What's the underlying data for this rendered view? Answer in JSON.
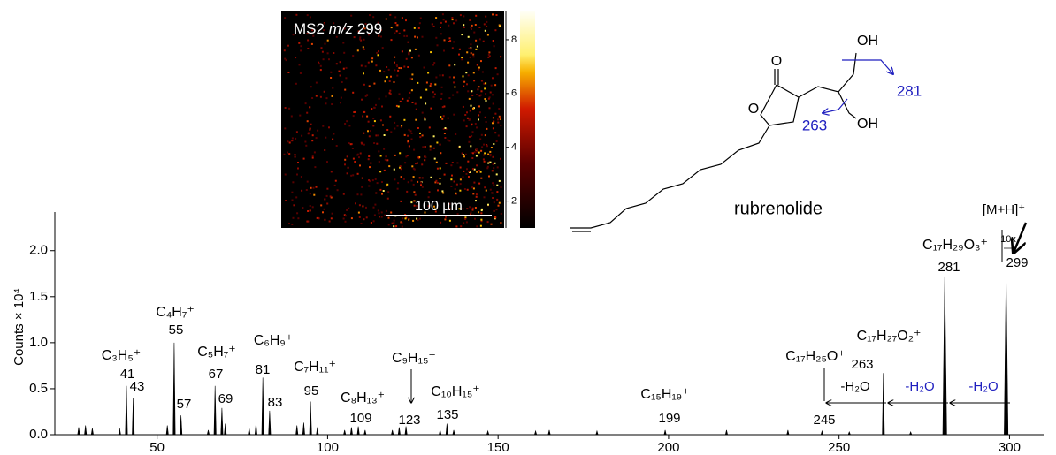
{
  "chart_data": {
    "type": "spectrum",
    "y_label": "Counts × 10⁴",
    "xlim": [
      20,
      310
    ],
    "xticks": [
      50,
      100,
      150,
      200,
      250,
      300
    ],
    "ylim": [
      0,
      2.42
    ],
    "yticks": [
      {
        "value": 0,
        "label": "0.0"
      },
      0.5,
      {
        "value": 1,
        "label": "1.0"
      },
      1.5,
      {
        "value": 2,
        "label": "2.0"
      }
    ],
    "color": "#000000",
    "x": [
      27,
      29,
      31,
      39,
      41,
      43,
      53,
      55,
      57,
      65,
      67,
      69,
      70,
      77,
      79,
      81,
      83,
      91,
      93,
      95,
      97,
      105,
      107,
      109,
      111,
      119,
      121,
      123,
      133,
      135,
      137,
      147,
      161,
      165,
      179,
      199,
      217,
      235,
      245,
      253,
      263,
      271,
      281,
      299
    ],
    "values": [
      0.08,
      0.1,
      0.07,
      0.07,
      0.53,
      0.4,
      0.1,
      1.0,
      0.21,
      0.05,
      0.53,
      0.29,
      0.12,
      0.07,
      0.12,
      0.62,
      0.26,
      0.1,
      0.13,
      0.36,
      0.08,
      0.05,
      0.08,
      0.09,
      0.05,
      0.05,
      0.08,
      0.09,
      0.05,
      0.12,
      0.05,
      0.04,
      0.04,
      0.05,
      0.04,
      0.05,
      0.05,
      0.05,
      0.04,
      0.03,
      0.67,
      0.03,
      1.72,
      1.74
    ],
    "value_labels": [
      null,
      null,
      null,
      null,
      "41",
      "43",
      null,
      "55",
      "57",
      null,
      "67",
      "69",
      null,
      null,
      null,
      "81",
      "83",
      null,
      null,
      "95",
      null,
      null,
      null,
      "109",
      null,
      null,
      null,
      "123",
      null,
      "135",
      null,
      null,
      null,
      null,
      null,
      "199",
      null,
      null,
      "245",
      null,
      "263",
      null,
      "281",
      "299"
    ],
    "formulas": [
      null,
      null,
      null,
      null,
      "C₃H₅⁺",
      null,
      null,
      "C₄H₇⁺",
      null,
      null,
      "C₅H₇⁺",
      null,
      null,
      null,
      null,
      "C₆H₉⁺",
      null,
      null,
      null,
      "C₇H₁₁⁺",
      null,
      null,
      null,
      "C₈H₁₃⁺",
      null,
      null,
      null,
      "C₉H₁₅⁺",
      null,
      "C₁₀H₁₅⁺",
      null,
      null,
      null,
      null,
      null,
      "C₁₅H₁₉⁺",
      null,
      null,
      "C₁₇H₂₅O⁺",
      null,
      "C₁₇H₂₇O₂⁺",
      null,
      "C₁₇H₂₉O₃⁺",
      null
    ],
    "loss_labels": [
      {
        "text": "-H₂O",
        "color": "#1f1fbf"
      },
      {
        "text": "-H₂O",
        "color": "#1f1fbf"
      },
      {
        "text": "-H₂O",
        "color": "#000000"
      }
    ],
    "precursor": "[M+H]⁺",
    "scale_note": "10x",
    "inset": {
      "title": [
        "MS2",
        "m/z",
        "299"
      ],
      "scale_bar": "100 µm",
      "colorbar": {
        "lim": [
          1,
          9.05
        ],
        "ticks": [
          2,
          4,
          6,
          8
        ]
      }
    },
    "structure": {
      "name": "rubrenolide",
      "carbonyl_o": "O",
      "ring_o": "O",
      "oh_top": "OH",
      "oh_bottom": "OH",
      "fragments": [
        281,
        263
      ],
      "fragment_color": "#1f1fbf"
    }
  }
}
